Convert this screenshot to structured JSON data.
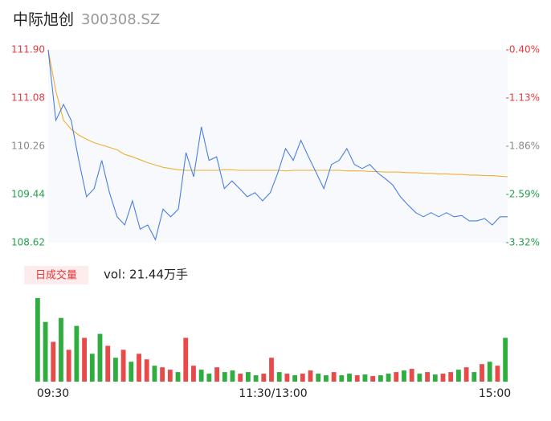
{
  "chart_data": {
    "type": "intraday",
    "title": "中际旭创",
    "subtitle": "300308.SZ",
    "x": [
      0,
      4,
      8,
      12,
      16,
      20,
      24,
      28,
      32,
      36,
      40,
      44,
      48,
      52,
      56,
      60,
      64,
      68,
      72,
      76,
      80,
      84,
      88,
      92,
      96,
      100,
      104,
      108,
      112,
      116,
      120,
      124,
      128,
      132,
      136,
      140,
      144,
      148,
      152,
      156,
      160,
      164,
      168,
      172,
      176,
      180,
      184,
      188,
      192,
      196,
      200,
      204,
      208,
      212,
      216,
      220,
      224,
      228,
      232,
      236,
      240
    ],
    "xlim": [
      0,
      240
    ],
    "xticks": [
      {
        "value": 0,
        "label": "09:30"
      },
      {
        "value": 120,
        "label": "11:30/13:00"
      },
      {
        "value": 240,
        "label": "15:00"
      }
    ],
    "ylim": [
      108.62,
      111.9
    ],
    "yticks": [
      {
        "value": 111.9,
        "label": "111.90"
      },
      {
        "value": 111.08,
        "label": "111.08"
      },
      {
        "value": 110.26,
        "label": "110.26"
      },
      {
        "value": 109.44,
        "label": "109.44"
      },
      {
        "value": 108.62,
        "label": "108.62"
      }
    ],
    "ytick_colors": [
      "#e8383d",
      "#e8383d",
      "#888888",
      "#22a04b",
      "#22a04b"
    ],
    "y2lim": [
      -3.32,
      -0.4
    ],
    "y2ticks": [
      {
        "value": -0.4,
        "label": "-0.40%"
      },
      {
        "value": -1.13,
        "label": "-1.13%"
      },
      {
        "value": -1.86,
        "label": "-1.86%"
      },
      {
        "value": -2.59,
        "label": "-2.59%"
      },
      {
        "value": -3.32,
        "label": "-3.32%"
      }
    ],
    "series": [
      {
        "name": "price",
        "color": "#4a7fe0",
        "values": [
          111.9,
          110.7,
          110.97,
          110.7,
          110.02,
          109.4,
          109.54,
          110.02,
          109.47,
          109.06,
          108.92,
          109.33,
          108.85,
          108.92,
          108.67,
          109.19,
          109.06,
          109.19,
          110.15,
          109.74,
          110.59,
          110.02,
          110.08,
          109.54,
          109.67,
          109.54,
          109.4,
          109.47,
          109.33,
          109.47,
          109.81,
          110.22,
          110.02,
          110.36,
          110.08,
          109.81,
          109.54,
          109.95,
          110.02,
          110.22,
          109.95,
          109.88,
          109.95,
          109.81,
          109.71,
          109.6,
          109.4,
          109.26,
          109.13,
          109.06,
          109.13,
          109.06,
          109.13,
          109.06,
          109.08,
          108.99,
          108.99,
          109.03,
          108.92,
          109.06,
          109.06
        ]
      },
      {
        "name": "average",
        "color": "#f0b030",
        "values": [
          111.9,
          111.2,
          110.7,
          110.55,
          110.45,
          110.38,
          110.32,
          110.28,
          110.24,
          110.2,
          110.12,
          110.08,
          110.03,
          109.98,
          109.94,
          109.9,
          109.88,
          109.86,
          109.85,
          109.85,
          109.85,
          109.85,
          109.85,
          109.86,
          109.86,
          109.85,
          109.85,
          109.85,
          109.85,
          109.85,
          109.85,
          109.84,
          109.85,
          109.85,
          109.85,
          109.85,
          109.85,
          109.85,
          109.85,
          109.84,
          109.84,
          109.84,
          109.83,
          109.83,
          109.82,
          109.82,
          109.82,
          109.81,
          109.81,
          109.8,
          109.8,
          109.79,
          109.79,
          109.78,
          109.78,
          109.77,
          109.77,
          109.76,
          109.76,
          109.75,
          109.74
        ]
      }
    ],
    "volume_title": "日成交量",
    "volume_label": "vol: 21.44万手",
    "volume": [
      105,
      75,
      50,
      80,
      40,
      70,
      55,
      35,
      60,
      45,
      30,
      40,
      25,
      35,
      28,
      20,
      18,
      15,
      12,
      55,
      20,
      15,
      10,
      18,
      12,
      14,
      10,
      12,
      8,
      10,
      30,
      12,
      10,
      8,
      10,
      14,
      10,
      8,
      12,
      8,
      10,
      8,
      9,
      7,
      8,
      10,
      12,
      14,
      16,
      10,
      12,
      9,
      10,
      12,
      15,
      18,
      12,
      22,
      25,
      20,
      55
    ],
    "volume_lim": [
      0,
      110
    ],
    "volume_colors": [
      "#2fae3f",
      "#2fae3f",
      "#e84a4a",
      "#2fae3f",
      "#e84a4a",
      "#2fae3f",
      "#e84a4a",
      "#2fae3f",
      "#2fae3f",
      "#e84a4a",
      "#2fae3f",
      "#e84a4a",
      "#2fae3f",
      "#e84a4a",
      "#e84a4a",
      "#2fae3f",
      "#e84a4a",
      "#e84a4a",
      "#2fae3f",
      "#e84a4a",
      "#e84a4a",
      "#2fae3f",
      "#2fae3f",
      "#e84a4a",
      "#2fae3f",
      "#2fae3f",
      "#e84a4a",
      "#2fae3f",
      "#2fae3f",
      "#e84a4a",
      "#e84a4a",
      "#2fae3f",
      "#e84a4a",
      "#2fae3f",
      "#e84a4a",
      "#e84a4a",
      "#2fae3f",
      "#2fae3f",
      "#e84a4a",
      "#2fae3f",
      "#2fae3f",
      "#e84a4a",
      "#2fae3f",
      "#e84a4a",
      "#2fae3f",
      "#2fae3f",
      "#e84a4a",
      "#2fae3f",
      "#e84a4a",
      "#2fae3f",
      "#e84a4a",
      "#2fae3f",
      "#e84a4a",
      "#e84a4a",
      "#2fae3f",
      "#e84a4a",
      "#2fae3f",
      "#e84a4a",
      "#2fae3f",
      "#e84a4a",
      "#2fae3f"
    ]
  }
}
